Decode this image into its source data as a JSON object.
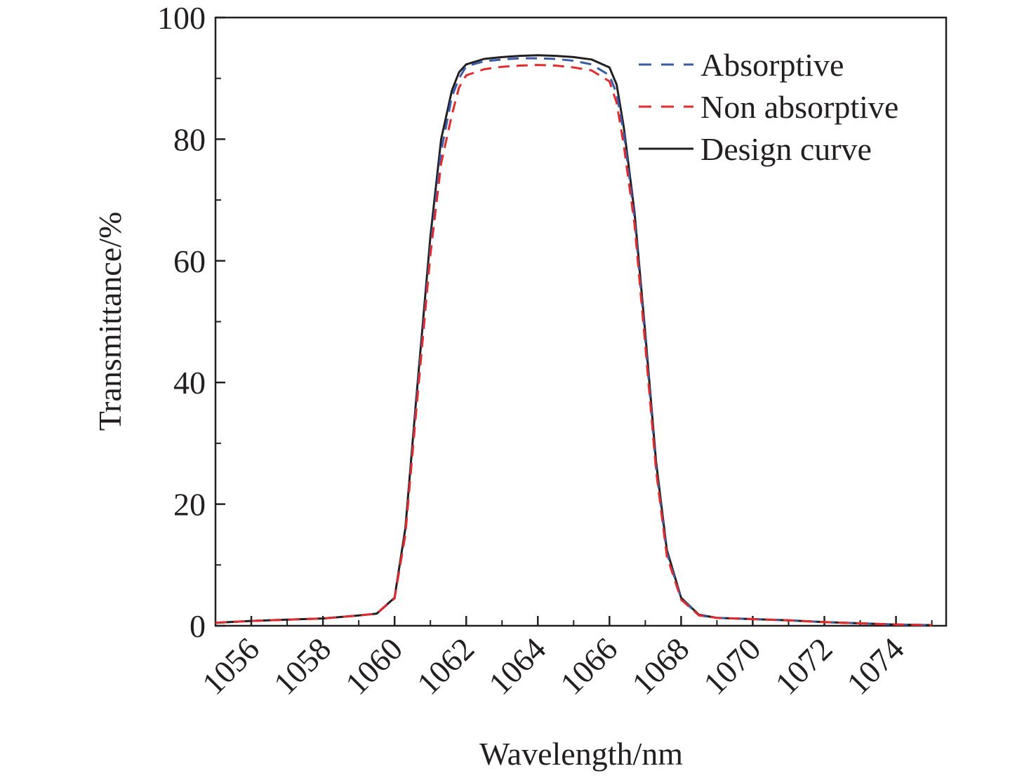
{
  "chart_data": {
    "type": "line",
    "title": "",
    "xlabel": "Wavelength/nm",
    "ylabel": "Transmittance/%",
    "xlim": [
      1055,
      1075.4
    ],
    "ylim": [
      0,
      100
    ],
    "xticks": [
      1056,
      1058,
      1060,
      1062,
      1064,
      1066,
      1068,
      1070,
      1072,
      1074
    ],
    "yticks": [
      0,
      20,
      40,
      60,
      80,
      100
    ],
    "grid": false,
    "legend_position": "top-right",
    "series": [
      {
        "name": "Absorptive",
        "color": "#3a5ba9",
        "style": "dashed",
        "x": [
          1055,
          1056,
          1057,
          1058,
          1059,
          1059.5,
          1060,
          1060.3,
          1060.6,
          1061,
          1061.3,
          1061.6,
          1061.8,
          1062,
          1062.5,
          1063,
          1063.5,
          1064,
          1064.5,
          1065,
          1065.5,
          1066,
          1066.2,
          1066.4,
          1066.7,
          1067,
          1067.3,
          1067.6,
          1068,
          1068.5,
          1069,
          1070,
          1071,
          1072,
          1073,
          1074,
          1075
        ],
        "y": [
          0.5,
          0.8,
          1.0,
          1.2,
          1.7,
          2.0,
          4.5,
          15,
          36,
          62,
          78,
          87,
          90,
          92,
          92.8,
          93.1,
          93.3,
          93.3,
          93.2,
          92.9,
          92.3,
          90.5,
          87.5,
          81,
          67,
          47,
          26,
          12,
          4.5,
          1.7,
          1.3,
          1.1,
          0.9,
          0.6,
          0.4,
          0.2,
          0.1
        ]
      },
      {
        "name": "Non absorptive",
        "color": "#e22b2b",
        "style": "dashed",
        "x": [
          1055,
          1056,
          1057,
          1058,
          1059,
          1059.5,
          1060,
          1060.3,
          1060.6,
          1061,
          1061.3,
          1061.6,
          1061.8,
          1062,
          1062.5,
          1063,
          1063.5,
          1064,
          1064.5,
          1065,
          1065.5,
          1066,
          1066.2,
          1066.4,
          1066.7,
          1067,
          1067.3,
          1067.6,
          1068,
          1068.5,
          1069,
          1070,
          1071,
          1072,
          1073,
          1074,
          1075
        ],
        "y": [
          0.5,
          0.8,
          1.0,
          1.2,
          1.7,
          2.0,
          4.5,
          15,
          35,
          61,
          76,
          84,
          88.5,
          90.5,
          91.5,
          91.9,
          92.1,
          92.2,
          92.1,
          91.8,
          91.3,
          89.5,
          86,
          79,
          66,
          46,
          25.5,
          11.5,
          4.3,
          1.7,
          1.3,
          1.1,
          0.9,
          0.6,
          0.4,
          0.2,
          0.1
        ]
      },
      {
        "name": "Design curve",
        "color": "#231f20",
        "style": "solid",
        "x": [
          1055,
          1056,
          1057,
          1058,
          1059,
          1059.5,
          1060,
          1060.3,
          1060.6,
          1061,
          1061.3,
          1061.6,
          1061.8,
          1062,
          1062.5,
          1063,
          1063.5,
          1064,
          1064.5,
          1065,
          1065.5,
          1066,
          1066.2,
          1066.4,
          1066.7,
          1067,
          1067.3,
          1067.6,
          1068,
          1068.5,
          1069,
          1070,
          1071,
          1072,
          1073,
          1074,
          1075
        ],
        "y": [
          0.5,
          0.8,
          1.0,
          1.2,
          1.7,
          2.0,
          4.6,
          16,
          37,
          64,
          80,
          88,
          91,
          92.3,
          93.2,
          93.5,
          93.7,
          93.8,
          93.7,
          93.5,
          93.1,
          91.8,
          89,
          82,
          68,
          48,
          27,
          12.5,
          4.6,
          1.8,
          1.3,
          1.1,
          0.9,
          0.6,
          0.4,
          0.2,
          0.1
        ]
      }
    ]
  }
}
